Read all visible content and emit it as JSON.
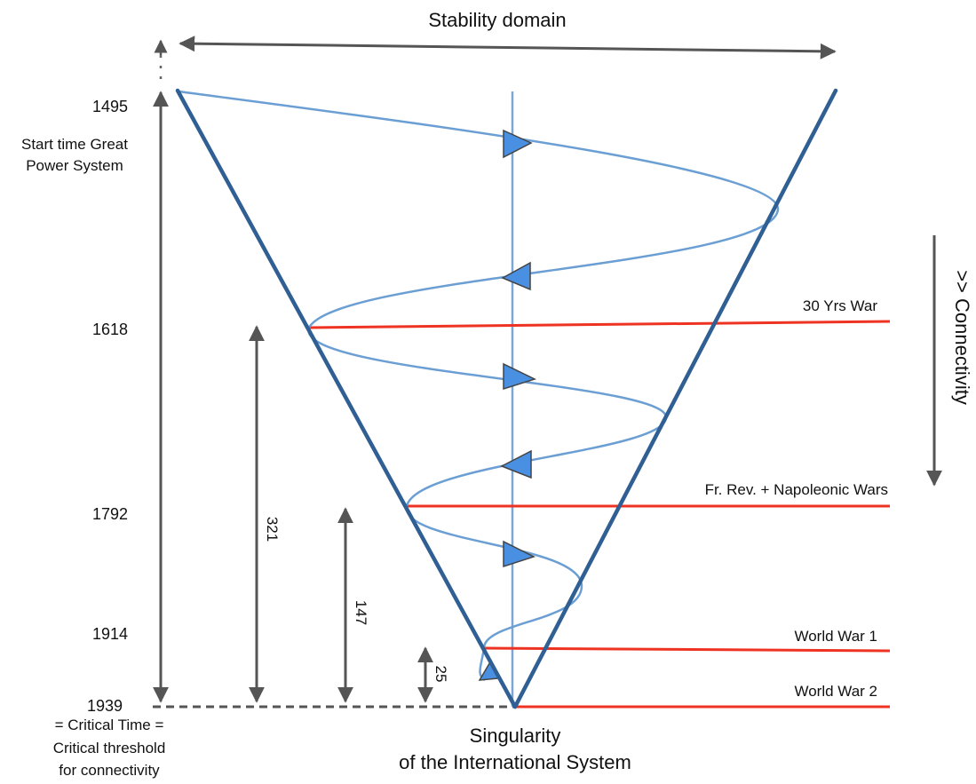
{
  "title": "Stability domain",
  "connectivity_label": ">> Connectivity",
  "years": [
    "1495",
    "1618",
    "1792",
    "1914",
    "1939"
  ],
  "start_label": [
    "Start time Great",
    "Power System"
  ],
  "critical_label": [
    "= Critical Time =",
    "Critical threshold",
    "for connectivity"
  ],
  "wars": [
    "30 Yrs War",
    "Fr. Rev. + Napoleonic Wars",
    "World War 1",
    "World War 2"
  ],
  "intervals": [
    "321",
    "147",
    "25"
  ],
  "singularity_label": [
    "Singularity",
    "of the International System"
  ],
  "colors": {
    "cone": "#2f5f93",
    "spiral": "#6b9fd4",
    "axis": "#7aa7d6",
    "war_line": "#ee3322",
    "arrow": "#555555",
    "arrowhead_fill": "#4a90e2"
  }
}
